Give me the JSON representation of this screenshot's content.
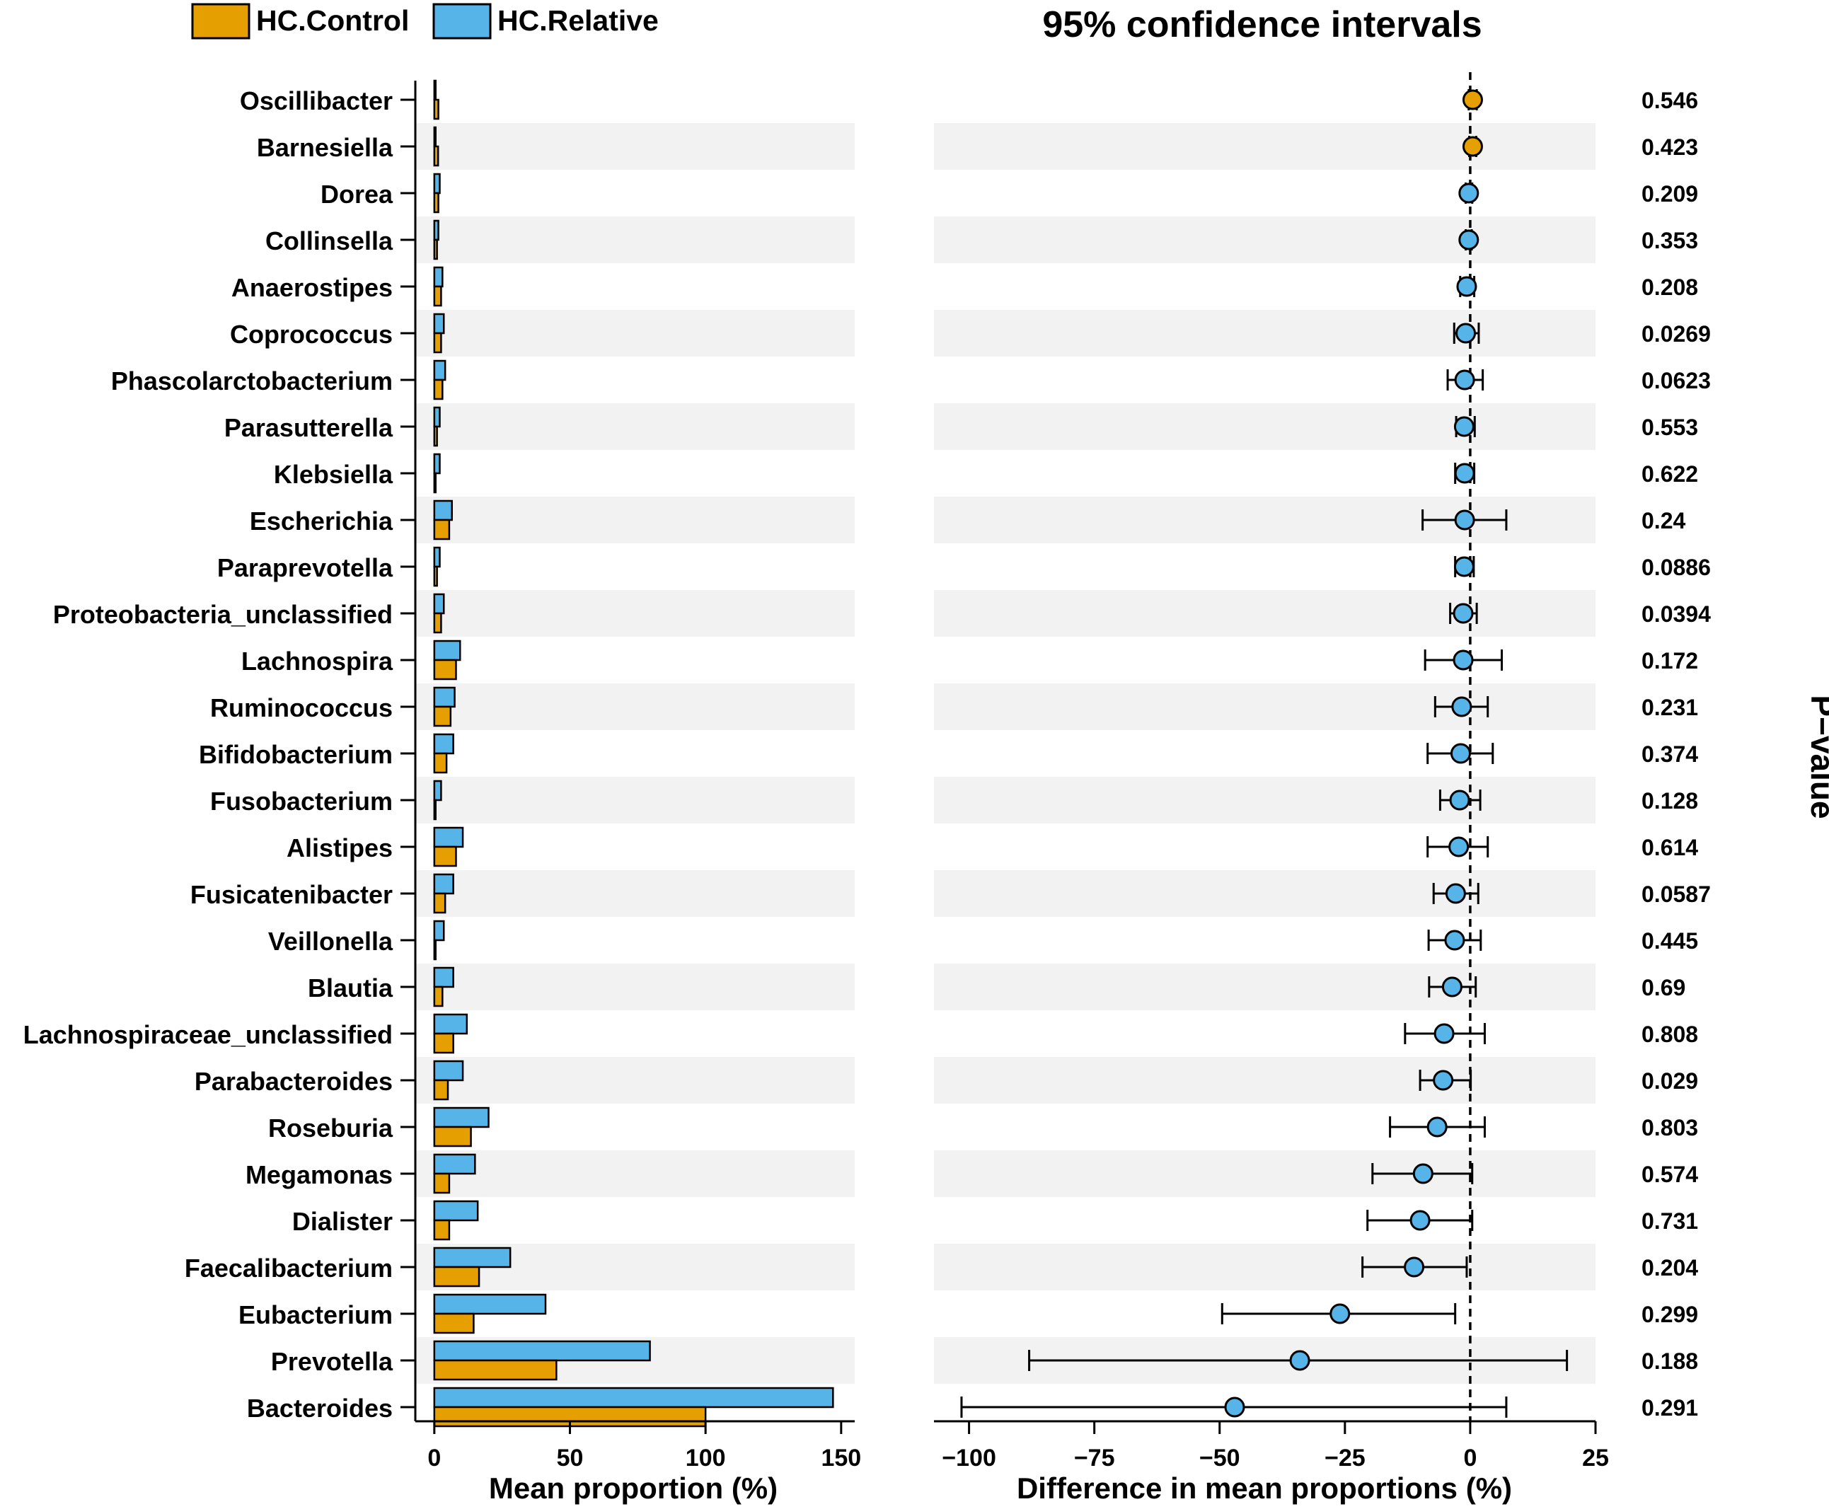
{
  "chart_data": {
    "type": "bar",
    "ci_title": "95% confidence intervals",
    "left_xlabel": "Mean proportion (%)",
    "right_xlabel": "Difference in mean proportions (%)",
    "pvalue_label": "P−value",
    "left_xlim": [
      -7,
      155
    ],
    "right_xlim": [
      -107,
      25
    ],
    "left_ticks": [
      0,
      50,
      100,
      150
    ],
    "right_ticks": [
      -100,
      -75,
      -50,
      -25,
      0,
      25
    ],
    "right_tick_labels": [
      "−100",
      "−75",
      "−50",
      "−25",
      "0",
      "25"
    ],
    "legend": [
      {
        "name": "HC.Control",
        "color": "#E69F00"
      },
      {
        "name": "HC.Relative",
        "color": "#56B4E9"
      }
    ],
    "colors": {
      "control": "#E69F00",
      "relative": "#56B4E9",
      "stripe": "#F2F2F2"
    },
    "categories": [
      "Oscillibacter",
      "Barnesiella",
      "Dorea",
      "Collinsella",
      "Anaerostipes",
      "Coprococcus",
      "Phascolarctobacterium",
      "Parasutterella",
      "Klebsiella",
      "Escherichia",
      "Paraprevotella",
      "Proteobacteria_unclassified",
      "Lachnospira",
      "Ruminococcus",
      "Bifidobacterium",
      "Fusobacterium",
      "Alistipes",
      "Fusicatenibacter",
      "Veillonella",
      "Blautia",
      "Lachnospiraceae_unclassified",
      "Parabacteroides",
      "Roseburia",
      "Megamonas",
      "Dialister",
      "Faecalibacterium",
      "Eubacterium",
      "Prevotella",
      "Bacteroides"
    ],
    "series": [
      {
        "name": "HC.Control",
        "values": [
          1.5,
          1.4,
          1.5,
          1,
          2.5,
          2.5,
          3,
          1,
          0.5,
          5.5,
          1,
          2.5,
          8,
          6,
          4.5,
          0.5,
          8,
          4,
          0.5,
          3,
          7,
          5,
          13.5,
          5.5,
          5.5,
          16.5,
          14.5,
          45,
          100
        ]
      },
      {
        "name": "HC.Relative",
        "values": [
          0.5,
          0.5,
          2,
          1.5,
          3,
          3.5,
          4,
          2,
          2,
          6.5,
          2,
          3.5,
          9.5,
          7.5,
          7,
          2.5,
          10.5,
          7,
          3.5,
          7,
          12,
          10.5,
          20,
          15,
          16,
          28,
          41,
          79.5,
          147
        ]
      }
    ],
    "differences": [
      0.5,
      0.5,
      -0.3,
      -0.3,
      -0.7,
      -0.9,
      -1.1,
      -1.2,
      -1.1,
      -1.1,
      -1.2,
      -1.4,
      -1.4,
      -1.7,
      -1.9,
      -2.1,
      -2.3,
      -2.9,
      -3.1,
      -3.6,
      -5.2,
      -5.4,
      -6.6,
      -9.4,
      -10,
      -11.2,
      -26,
      -34,
      -47
    ],
    "ci_low": [
      -0.3,
      -0.2,
      -0.9,
      -0.9,
      -2,
      -3.2,
      -4.5,
      -2.8,
      -3,
      -9.5,
      -3,
      -4,
      -9,
      -7,
      -8.5,
      -6,
      -8.5,
      -7.3,
      -8.3,
      -8.2,
      -13,
      -10,
      -16,
      -19.5,
      -20.5,
      -21.5,
      -49.5,
      -88,
      -101.5
    ],
    "ci_high": [
      1.3,
      1.2,
      0.4,
      0.3,
      0.8,
      1.7,
      2.5,
      0.9,
      0.8,
      7.2,
      0.7,
      1.3,
      6.3,
      3.5,
      4.5,
      2,
      3.5,
      1.6,
      2.1,
      1.1,
      2.9,
      0.1,
      2.9,
      0.4,
      0.4,
      -0.7,
      -3,
      19.3,
      7.2
    ],
    "pvalues": [
      "0.546",
      "0.423",
      "0.209",
      "0.353",
      "0.208",
      "0.0269",
      "0.0623",
      "0.553",
      "0.622",
      "0.24",
      "0.0886",
      "0.0394",
      "0.172",
      "0.231",
      "0.374",
      "0.128",
      "0.614",
      "0.0587",
      "0.445",
      "0.69",
      "0.808",
      "0.029",
      "0.803",
      "0.574",
      "0.731",
      "0.204",
      "0.299",
      "0.188",
      "0.291"
    ],
    "point_group": [
      "HC.Control",
      "HC.Control",
      "HC.Relative",
      "HC.Relative",
      "HC.Relative",
      "HC.Relative",
      "HC.Relative",
      "HC.Relative",
      "HC.Relative",
      "HC.Relative",
      "HC.Relative",
      "HC.Relative",
      "HC.Relative",
      "HC.Relative",
      "HC.Relative",
      "HC.Relative",
      "HC.Relative",
      "HC.Relative",
      "HC.Relative",
      "HC.Relative",
      "HC.Relative",
      "HC.Relative",
      "HC.Relative",
      "HC.Relative",
      "HC.Relative",
      "HC.Relative",
      "HC.Relative",
      "HC.Relative",
      "HC.Relative"
    ]
  }
}
